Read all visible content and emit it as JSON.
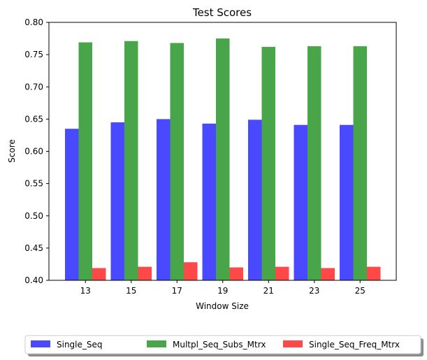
{
  "chart_data": {
    "type": "bar",
    "title": "Test Scores",
    "xlabel": "Window Size",
    "ylabel": "Score",
    "categories": [
      "13",
      "15",
      "17",
      "19",
      "21",
      "23",
      "25"
    ],
    "ylim": [
      0.4,
      0.8
    ],
    "yticks": [
      "0.40",
      "0.45",
      "0.50",
      "0.55",
      "0.60",
      "0.65",
      "0.70",
      "0.75",
      "0.80"
    ],
    "grid": false,
    "legend_position": "bottom-center",
    "series": [
      {
        "name": "Single_Seq",
        "color": "#4949ff",
        "values": [
          0.635,
          0.645,
          0.65,
          0.643,
          0.649,
          0.641,
          0.641
        ]
      },
      {
        "name": "Multpl_Seq_Subs_Mtrx",
        "color": "#49a549",
        "values": [
          0.769,
          0.771,
          0.768,
          0.775,
          0.762,
          0.763,
          0.763
        ]
      },
      {
        "name": "Single_Seq_Freq_Mtrx",
        "color": "#ff4949",
        "values": [
          0.419,
          0.421,
          0.428,
          0.42,
          0.421,
          0.419,
          0.421
        ]
      }
    ]
  }
}
